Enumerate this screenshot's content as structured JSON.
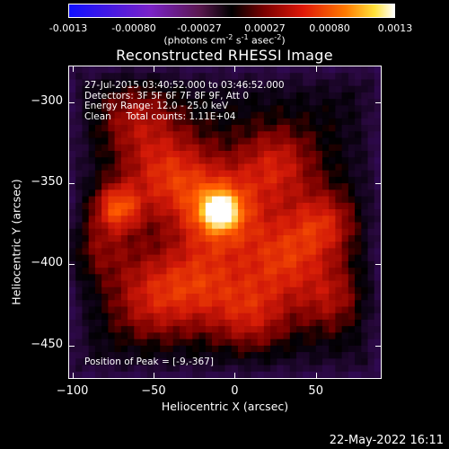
{
  "colorbar": {
    "tick_labels": [
      "-0.0013",
      "-0.00080",
      "-0.00027",
      "0.00027",
      "0.00080",
      "0.0013"
    ],
    "units": "(photons cm",
    "units_exp1": "-2",
    "units_mid1": " s",
    "units_exp2": "-1",
    "units_mid2": " asec",
    "units_exp3": "-2",
    "units_end": ")"
  },
  "chart_data": {
    "type": "heatmap",
    "title": "Reconstructed RHESSI Image",
    "xlabel": "Heliocentric X (arcsec)",
    "ylabel": "Heliocentric Y (arcsec)",
    "xlim": [
      -102,
      90
    ],
    "ylim": [
      -470,
      -278
    ],
    "xticks": [
      -100,
      -50,
      0,
      50
    ],
    "xtick_labels": [
      "−100",
      "−50",
      "0",
      "50"
    ],
    "yticks": [
      -300,
      -350,
      -400,
      -450
    ],
    "ytick_labels": [
      "−300",
      "−350",
      "−400",
      "−450"
    ],
    "colorbar_range": [
      -0.0013,
      0.0013
    ],
    "peak_position": [
      -9,
      -367
    ],
    "annotations": [
      "27-Jul-2015 03:40:52.000 to 03:46:52.000",
      "Detectors: 3F 5F 6F 7F 8F 9F, Att 0",
      "Energy Range: 12.0 - 25.0 keV",
      "Clean     Total counts: 1.11E+04"
    ],
    "peak_label": "Position of Peak = [-9,-367]",
    "sources": [
      {
        "x": -9,
        "y": -367,
        "intensity": 1.0,
        "sigma": 6
      },
      {
        "x": -9,
        "y": -367,
        "intensity": 0.55,
        "sigma": 16
      },
      {
        "x": -72,
        "y": -365,
        "intensity": 0.45,
        "sigma": 10
      },
      {
        "x": -40,
        "y": -345,
        "intensity": 0.35,
        "sigma": 18
      },
      {
        "x": 25,
        "y": -340,
        "intensity": 0.3,
        "sigma": 16
      },
      {
        "x": 30,
        "y": -395,
        "intensity": 0.35,
        "sigma": 18
      },
      {
        "x": 55,
        "y": -375,
        "intensity": 0.3,
        "sigma": 14
      },
      {
        "x": -20,
        "y": -410,
        "intensity": 0.3,
        "sigma": 18
      },
      {
        "x": -50,
        "y": -420,
        "intensity": 0.28,
        "sigma": 18
      },
      {
        "x": 10,
        "y": -430,
        "intensity": 0.28,
        "sigma": 16
      },
      {
        "x": -60,
        "y": -310,
        "intensity": 0.22,
        "sigma": 16
      },
      {
        "x": 60,
        "y": -420,
        "intensity": 0.22,
        "sigma": 14
      },
      {
        "x": -85,
        "y": -390,
        "intensity": 0.18,
        "sigma": 14
      }
    ],
    "grid": false
  },
  "footer": {
    "date": "22-May-2022 16:11"
  }
}
